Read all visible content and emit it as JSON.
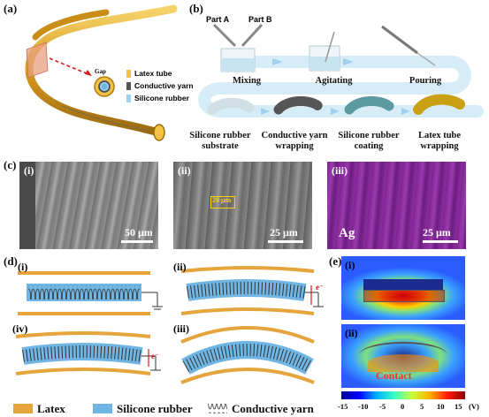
{
  "panels": {
    "a": "(a)",
    "b": "(b)",
    "c": "(c)",
    "d": "(d)",
    "e": "(e)"
  },
  "panel_a": {
    "gap": "Gap",
    "legend": [
      "Latex tube",
      "Conductive yarn",
      "Silicone rubber"
    ]
  },
  "panel_b": {
    "part_a": "Part A",
    "part_b": "Part B",
    "steps_top": [
      "Mixing",
      "Agitating",
      "Pouring"
    ],
    "steps_bottom": [
      "Silicone rubber substrate",
      "Conductive yarn wrapping",
      "Silicone rubber coating",
      "Latex tube wrapping"
    ]
  },
  "panel_c": {
    "i": {
      "label": "(i)",
      "scale": "50 μm"
    },
    "ii": {
      "label": "(ii)",
      "scale": "25 μm",
      "annotation": "20 μm"
    },
    "iii": {
      "label": "(iii)",
      "scale": "25 μm",
      "element": "Ag"
    }
  },
  "panel_d": {
    "subs": [
      "(i)",
      "(ii)",
      "(iv)",
      "(iii)"
    ],
    "electron": "e⁻",
    "legend": [
      "Latex",
      "Silicone rubber",
      "Conductive yarn"
    ]
  },
  "panel_e": {
    "subs": [
      "(i)",
      "(ii)"
    ],
    "contact": "Contact",
    "colorbar_ticks": [
      "-15",
      "-10",
      "-5",
      "0",
      "5",
      "10",
      "15"
    ],
    "colorbar_unit": "(V)"
  },
  "colors": {
    "latex": "#e6a43c",
    "silicone": "#6fb6e4",
    "sem_purple": "#8a2f9c",
    "contact": "#ff2a2a"
  }
}
